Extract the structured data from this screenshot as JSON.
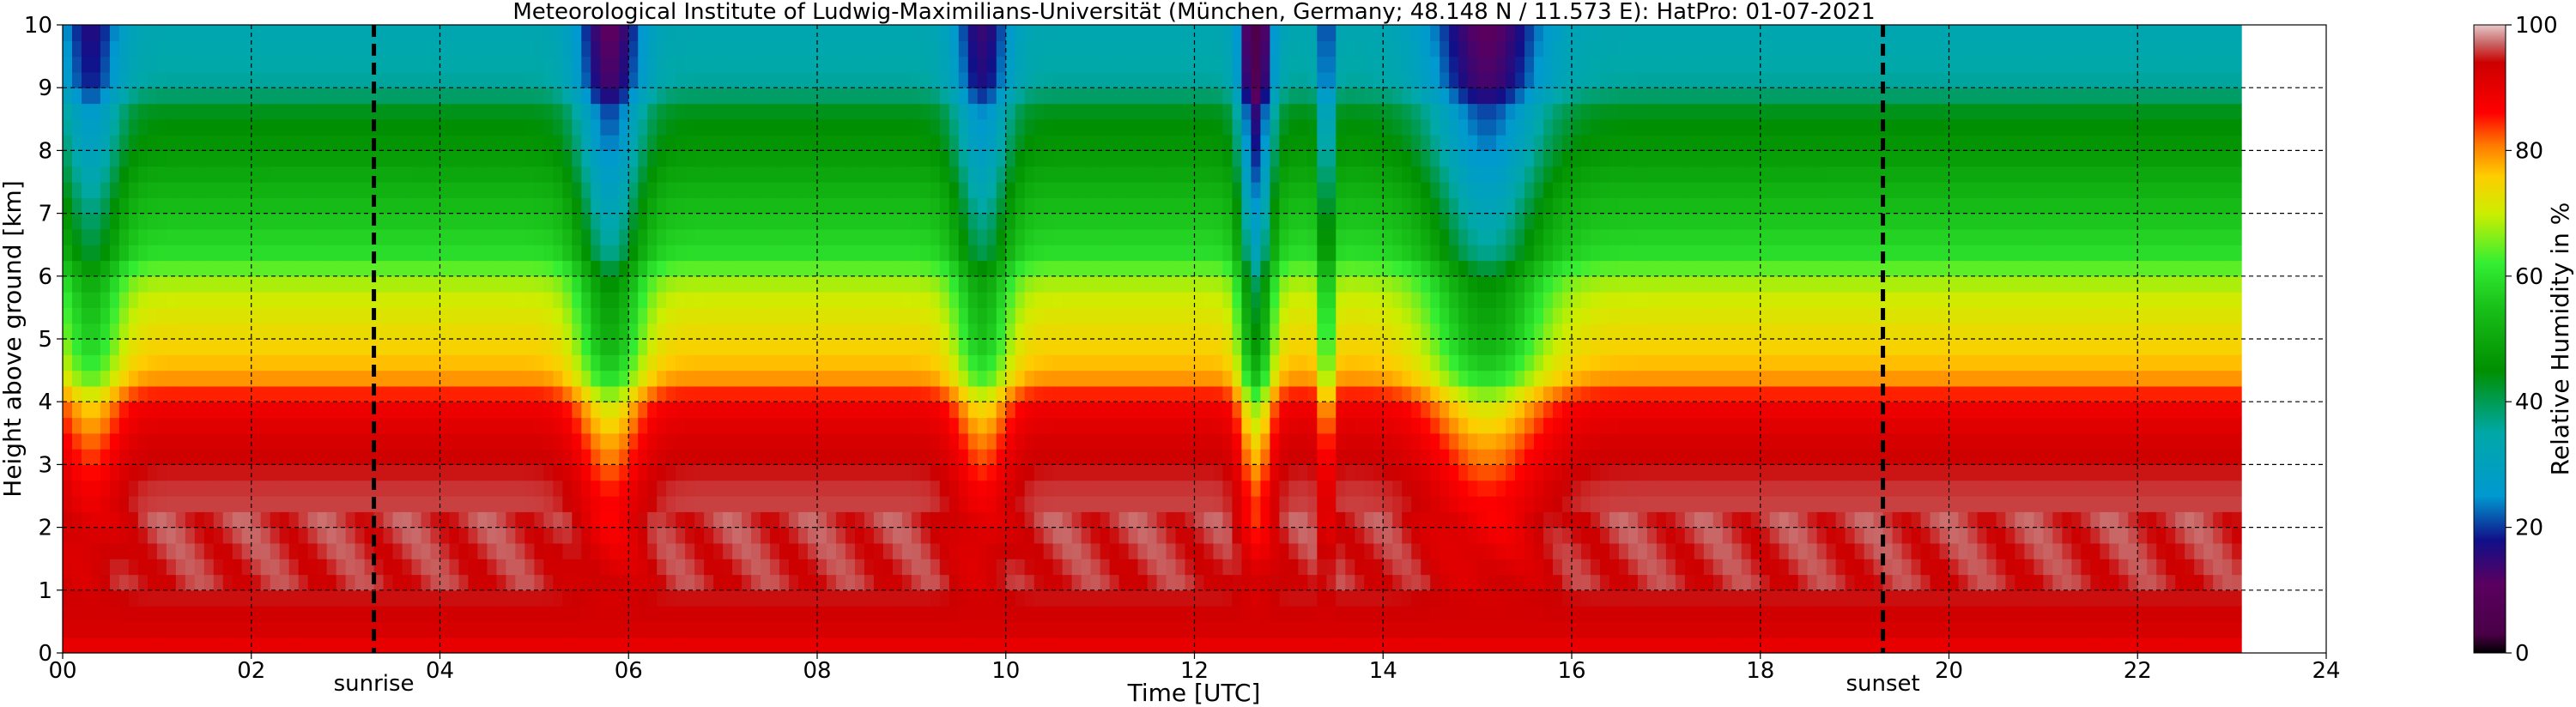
{
  "chart_data": {
    "type": "heatmap",
    "title": "Meteorological Institute of Ludwig-Maximilians-Universität (München, Germany; 48.148 N / 11.573 E):    HatPro: 01-07-2021",
    "xlabel": "Time [UTC]",
    "ylabel": "Height above ground [km]",
    "xlim": [
      0,
      24
    ],
    "ylim": [
      0,
      10
    ],
    "x_ticks": [
      "00",
      "02",
      "04",
      "06",
      "08",
      "10",
      "12",
      "14",
      "16",
      "18",
      "20",
      "22",
      "24"
    ],
    "y_ticks": [
      "0",
      "1",
      "2",
      "3",
      "4",
      "5",
      "6",
      "7",
      "8",
      "9",
      "10"
    ],
    "grid": true,
    "data_end_hour": 23.05,
    "colorbar": {
      "label": "Relative Humidity in %",
      "range": [
        0,
        100
      ],
      "ticks": [
        "0",
        "20",
        "40",
        "60",
        "80",
        "100"
      ],
      "stops": [
        {
          "value": 0,
          "color": "#000000"
        },
        {
          "value": 3,
          "color": "#4a0046"
        },
        {
          "value": 11,
          "color": "#5a0060"
        },
        {
          "value": 18,
          "color": "#10108a"
        },
        {
          "value": 25,
          "color": "#0099d0"
        },
        {
          "value": 35,
          "color": "#00a8a8"
        },
        {
          "value": 45,
          "color": "#008f00"
        },
        {
          "value": 55,
          "color": "#19c019"
        },
        {
          "value": 62,
          "color": "#33ee33"
        },
        {
          "value": 70,
          "color": "#ccee00"
        },
        {
          "value": 76,
          "color": "#ffcc00"
        },
        {
          "value": 81,
          "color": "#ff7700"
        },
        {
          "value": 86,
          "color": "#ff0000"
        },
        {
          "value": 94,
          "color": "#cc0000"
        },
        {
          "value": 97,
          "color": "#c86464"
        },
        {
          "value": 100,
          "color": "#e8c8c8"
        }
      ]
    },
    "events": [
      {
        "label": "sunrise",
        "hour": 3.3
      },
      {
        "label": "sunset",
        "hour": 19.3
      }
    ],
    "profile": {
      "height_km": [
        0,
        0.3,
        1,
        2.5,
        3.3,
        4.0,
        4.3,
        4.7,
        5.2,
        5.7,
        6.0,
        6.3,
        7.0,
        8.0,
        8.7,
        9.0,
        10
      ],
      "rh_percent": [
        88,
        92,
        95,
        96,
        93,
        88,
        80,
        76,
        73,
        70,
        67,
        60,
        55,
        47,
        43,
        36,
        33
      ]
    },
    "dry_intrusions": [
      {
        "center_hour": 0.3,
        "halfwidth_hour": 0.32,
        "strength": 0.45
      },
      {
        "center_hour": 5.8,
        "halfwidth_hour": 0.35,
        "strength": 0.6
      },
      {
        "center_hour": 9.75,
        "halfwidth_hour": 0.3,
        "strength": 0.5
      },
      {
        "center_hour": 12.65,
        "halfwidth_hour": 0.18,
        "strength": 0.75
      },
      {
        "center_hour": 13.4,
        "halfwidth_hour": 0.08,
        "strength": 0.45
      },
      {
        "center_hour": 15.1,
        "halfwidth_hour": 0.6,
        "strength": 0.6
      }
    ]
  }
}
